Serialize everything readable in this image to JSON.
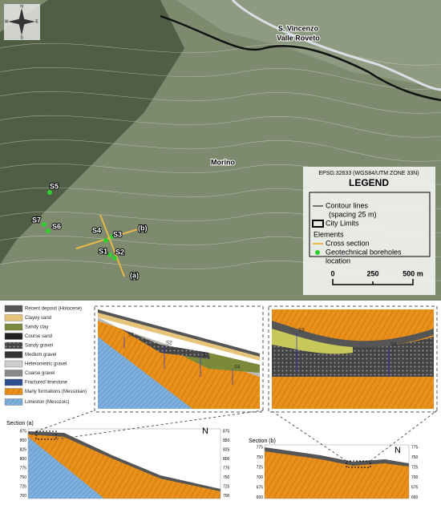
{
  "map": {
    "compass": [
      "N",
      "E",
      "S",
      "W"
    ],
    "town_1": [
      "S. Vincenzo",
      "Valle Roveto"
    ],
    "town_2": "Morino",
    "boreholes": [
      "S1",
      "S2",
      "S3",
      "S4",
      "S5",
      "S6",
      "S7"
    ],
    "sections": [
      "(a)",
      "(b)"
    ],
    "legend": {
      "crs": "EPSG:32633 (WGS84/UTM ZONE 33N)",
      "title": "LEGEND",
      "contour": [
        "Contour lines",
        "(spacing 25 m)"
      ],
      "city": "City Limits",
      "elements": "Elements",
      "cross": "Cross section",
      "bore": [
        "Geotechnical boreholes",
        "location"
      ]
    },
    "scale": [
      "0",
      "250",
      "500 m"
    ]
  },
  "geology": {
    "legend": [
      "Recent deposit (Holocene)",
      "Clayey sand",
      "Sandy clay",
      "Course sand",
      "Sandy gravel",
      "Medium gravel",
      "Heterometric gravel",
      "Coarse gravel",
      "Fractured limestone",
      "Marly formations (Messinian)",
      "Limeston (Mesozoic)"
    ],
    "zoom_a": [
      "S1",
      "S2",
      "S3",
      "S4"
    ],
    "zoom_b": [
      "S3",
      "S4"
    ],
    "section_a": {
      "title": "Section (a)",
      "north": "N",
      "ticks_left": [
        "875",
        "850",
        "825",
        "800",
        "775",
        "750",
        "725",
        "700"
      ],
      "ticks_right": [
        "875",
        "850",
        "825",
        "800",
        "775",
        "750",
        "725",
        "700"
      ]
    },
    "section_b": {
      "title": "Section (b)",
      "north": "N",
      "ticks_left": [
        "775",
        "750",
        "725",
        "700",
        "675",
        "650"
      ],
      "ticks_right": [
        "775",
        "750",
        "725",
        "700",
        "675",
        "650"
      ]
    }
  }
}
